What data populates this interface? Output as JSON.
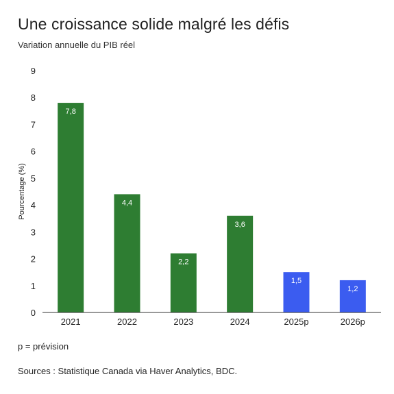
{
  "header": {
    "title": "Une croissance solide malgré les défis",
    "subtitle": "Variation annuelle du PIB réel"
  },
  "footer": {
    "note": "p = prévision",
    "source": "Sources : Statistique Canada via Haver Analytics, BDC."
  },
  "colors": {
    "actual": "#2e7d32",
    "forecast": "#3b5cf0",
    "axis": "#333333"
  },
  "chart_data": {
    "type": "bar",
    "categories": [
      "2021",
      "2022",
      "2023",
      "2024",
      "2025p",
      "2026p"
    ],
    "values": [
      7.8,
      4.4,
      2.2,
      3.6,
      1.5,
      1.2
    ],
    "data_labels": [
      "7,8",
      "4,4",
      "2,2",
      "3,6",
      "1,5",
      "1,2"
    ],
    "bar_types": [
      "actual",
      "actual",
      "actual",
      "actual",
      "forecast",
      "forecast"
    ],
    "ylabel": "Pourcentage (%)",
    "xlabel": "",
    "ylim": [
      0,
      9
    ],
    "yticks": [
      0,
      1,
      2,
      3,
      4,
      5,
      6,
      7,
      8,
      9
    ],
    "grid": false,
    "legend": "none"
  }
}
